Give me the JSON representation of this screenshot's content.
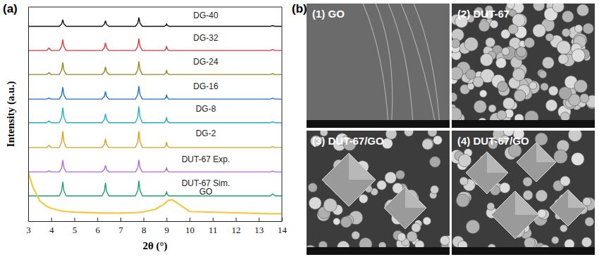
{
  "chart_data": {
    "type": "line",
    "panel_label": "(a)",
    "x_label": "2θ (°)",
    "y_label": "Intensity (a.u.)",
    "xlim": [
      3,
      14
    ],
    "xticks": [
      3,
      4,
      5,
      6,
      7,
      8,
      9,
      10,
      11,
      12,
      13,
      14
    ],
    "ylim": [
      0,
      10
    ],
    "tick_labels": "x",
    "grid": false,
    "x": [
      3,
      3.2,
      3.5,
      3.8,
      3.9,
      4.0,
      4.35,
      4.45,
      4.5,
      4.55,
      4.65,
      5.0,
      6.2,
      6.3,
      6.35,
      6.4,
      6.5,
      7.0,
      7.65,
      7.75,
      7.8,
      7.85,
      7.95,
      8.5,
      8.9,
      8.97,
      9.0,
      9.03,
      9.1,
      9.25,
      9.6,
      10.0,
      13.5,
      13.6,
      13.7,
      14
    ],
    "series": [
      {
        "name": "DG-40",
        "color": "#111111",
        "values": [
          9.1,
          9.1,
          9.1,
          9.1,
          9.1,
          9.1,
          9.1,
          9.21,
          9.4,
          9.21,
          9.1,
          9.1,
          9.1,
          9.19,
          9.35,
          9.19,
          9.1,
          9.1,
          9.1,
          9.24,
          9.5,
          9.24,
          9.1,
          9.1,
          9.1,
          9.14,
          9.22,
          9.14,
          9.1,
          9.1,
          9.1,
          9.1,
          9.1,
          9.13,
          9.1,
          9.1
        ]
      },
      {
        "name": "DG-32",
        "color": "#e0393e",
        "values": [
          7.97,
          7.97,
          7.97,
          7.97,
          8.09,
          7.97,
          7.97,
          8.15,
          8.47,
          8.15,
          7.97,
          7.97,
          7.97,
          8.09,
          8.32,
          8.09,
          7.97,
          7.97,
          7.97,
          8.16,
          8.52,
          8.16,
          7.97,
          7.97,
          7.97,
          8.04,
          8.17,
          8.04,
          7.97,
          7.97,
          7.97,
          7.97,
          7.97,
          8.01,
          7.97,
          7.97
        ]
      },
      {
        "name": "DG-24",
        "color": "#9a8420",
        "values": [
          6.85,
          6.85,
          6.85,
          6.85,
          6.93,
          6.85,
          6.85,
          7.04,
          7.4,
          7.04,
          6.85,
          6.85,
          6.85,
          6.97,
          7.2,
          6.97,
          6.85,
          6.85,
          6.85,
          7.06,
          7.45,
          7.06,
          6.85,
          6.85,
          6.85,
          6.92,
          7.05,
          6.92,
          6.85,
          6.85,
          6.85,
          6.85,
          6.85,
          6.89,
          6.85,
          6.85
        ]
      },
      {
        "name": "DG-16",
        "color": "#1f6fd1",
        "values": [
          5.7,
          5.7,
          5.7,
          5.7,
          5.75,
          5.7,
          5.7,
          5.89,
          6.25,
          5.89,
          5.7,
          5.7,
          5.7,
          5.82,
          6.05,
          5.82,
          5.7,
          5.7,
          5.7,
          5.91,
          6.3,
          5.91,
          5.7,
          5.7,
          5.7,
          5.77,
          5.9,
          5.77,
          5.7,
          5.7,
          5.7,
          5.7,
          5.7,
          5.74,
          5.7,
          5.7
        ]
      },
      {
        "name": "DG-8",
        "color": "#27aec6",
        "values": [
          4.6,
          4.6,
          4.6,
          4.6,
          4.68,
          4.6,
          4.6,
          4.85,
          5.3,
          4.85,
          4.6,
          4.6,
          4.6,
          4.74,
          5.0,
          4.74,
          4.6,
          4.6,
          4.6,
          4.86,
          5.35,
          4.86,
          4.6,
          4.6,
          4.6,
          4.69,
          4.85,
          4.69,
          4.6,
          4.6,
          4.6,
          4.6,
          4.6,
          4.64,
          4.6,
          4.6
        ]
      },
      {
        "name": "DG-2",
        "color": "#d9a11b",
        "values": [
          3.44,
          3.44,
          3.44,
          3.44,
          3.54,
          3.44,
          3.44,
          3.7,
          4.19,
          3.7,
          3.44,
          3.44,
          3.44,
          3.58,
          3.84,
          3.58,
          3.44,
          3.44,
          3.44,
          3.7,
          4.19,
          3.7,
          3.44,
          3.44,
          3.44,
          3.53,
          3.69,
          3.53,
          3.44,
          3.44,
          3.44,
          3.44,
          3.44,
          3.48,
          3.44,
          3.44
        ]
      },
      {
        "name": "DUT-67 Exp.",
        "color": "#b468d8",
        "values": [
          2.3,
          2.3,
          2.3,
          2.3,
          2.35,
          2.3,
          2.3,
          2.49,
          2.85,
          2.49,
          2.3,
          2.3,
          2.3,
          2.41,
          2.6,
          2.41,
          2.3,
          2.3,
          2.3,
          2.49,
          2.85,
          2.49,
          2.3,
          2.3,
          2.3,
          2.37,
          2.5,
          2.37,
          2.3,
          2.3,
          2.3,
          2.3,
          2.3,
          2.34,
          2.3,
          2.3
        ]
      },
      {
        "name": "DUT-67 Sim.",
        "color": "#1e9e6e",
        "values": [
          1.18,
          1.18,
          1.18,
          1.18,
          1.18,
          1.18,
          1.18,
          1.41,
          1.83,
          1.41,
          1.18,
          1.18,
          1.18,
          1.39,
          1.78,
          1.39,
          1.18,
          1.18,
          1.18,
          1.43,
          1.88,
          1.43,
          1.18,
          1.18,
          1.18,
          1.25,
          1.38,
          1.25,
          1.18,
          1.18,
          1.18,
          1.18,
          1.18,
          1.28,
          1.18,
          1.18
        ]
      },
      {
        "name": "GO",
        "color": "#f5c842",
        "values": [
          2.3,
          1.6,
          0.95,
          0.7,
          0.65,
          0.6,
          0.5,
          0.48,
          0.47,
          0.46,
          0.45,
          0.42,
          0.38,
          0.38,
          0.38,
          0.38,
          0.38,
          0.38,
          0.4,
          0.41,
          0.41,
          0.42,
          0.43,
          0.55,
          0.8,
          0.88,
          0.9,
          0.93,
          0.98,
          1.0,
          0.75,
          0.45,
          0.35,
          0.35,
          0.35,
          0.35
        ]
      }
    ]
  },
  "sem_panel": {
    "panel_label": "(b)",
    "images": [
      "(1) GO",
      "(2) DUT-67",
      "(3) DUT-67/GO",
      "(4) DUT-67/GO"
    ]
  }
}
